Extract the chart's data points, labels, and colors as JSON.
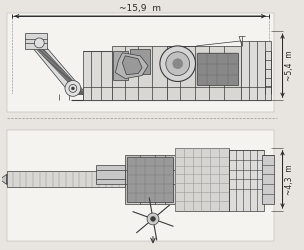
{
  "bg_color": "#e8e5e0",
  "line_color": "#3a3a3a",
  "dim_color": "#2a2a2a",
  "dim_width_text": "~15,9  m",
  "dim_height_text": "~5,4  m",
  "dim_width_text2": "~4,3  m",
  "figsize": [
    3.04,
    2.5
  ],
  "dpi": 100,
  "side_view": {
    "ymin": 110,
    "ymax": 245,
    "xmin": 5,
    "xmax": 278
  },
  "plan_view": {
    "ymin": 8,
    "ymax": 108,
    "xmin": 5,
    "xmax": 278
  }
}
